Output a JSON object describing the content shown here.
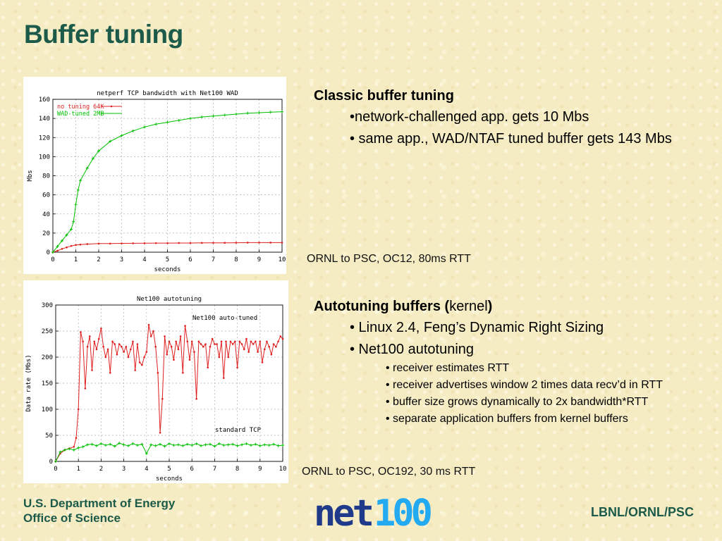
{
  "slide": {
    "title": "Buffer tuning",
    "colors": {
      "title": "#1c5a4a",
      "background": "#f6ecc4",
      "series_red": "#e02020",
      "series_green": "#00c000"
    }
  },
  "section1": {
    "title": "Classic buffer tuning",
    "bullets": [
      "•network-challenged app. gets 10 Mbs",
      "• same app., WAD/NTAF tuned buffer gets 143 Mbs"
    ],
    "caption": "ORNL to PSC,  OC12, 80ms RTT"
  },
  "section2": {
    "title_bold": "Autotuning buffers (",
    "title_normal": "kernel",
    "title_close": ")",
    "bullets": [
      "• Linux 2.4, Feng’s Dynamic Right Sizing",
      "•  Net100 autotuning"
    ],
    "sub_bullets": [
      "• receiver estimates RTT",
      "• receiver advertises window 2 times data recv’d in RTT",
      "• buffer size grows dynamically to 2x bandwidth*RTT",
      "• separate application buffers from kernel buffers"
    ],
    "caption": "ORNL to PSC, OC192, 30 ms RTT"
  },
  "footer": {
    "dept_line1": "U.S. Department of Energy",
    "dept_line2": "Office of Science",
    "labs": "LBNL/ORNL/PSC",
    "logo_text": "net100",
    "logo_icon": "net100-logo"
  },
  "chart_data": [
    {
      "type": "line",
      "title": "netperf TCP bandwidth with Net100 WAD",
      "xlabel": "seconds",
      "ylabel": "Mbs",
      "xlim": [
        0,
        10
      ],
      "ylim": [
        0,
        160
      ],
      "xticks": [
        "0",
        "1",
        "2",
        "3",
        "4",
        "5",
        "6",
        "7",
        "8",
        "9",
        "10"
      ],
      "yticks": [
        "0",
        "20",
        "40",
        "60",
        "80",
        "100",
        "120",
        "140",
        "160"
      ],
      "grid": true,
      "legend_position": "top-left",
      "series": [
        {
          "name": "no tuning 64K",
          "color": "#e02020",
          "x": [
            0,
            0.2,
            0.4,
            0.6,
            0.8,
            1.0,
            1.2,
            1.5,
            2,
            2.5,
            3,
            3.5,
            4,
            4.5,
            5,
            5.5,
            6,
            6.5,
            7,
            7.5,
            8,
            8.5,
            9,
            9.5,
            10
          ],
          "y": [
            0,
            1.5,
            3.5,
            5,
            6.5,
            7.5,
            8,
            8.5,
            9,
            9,
            9.2,
            9.3,
            9.4,
            9.5,
            9.5,
            9.6,
            9.6,
            9.7,
            9.8,
            9.8,
            9.9,
            10,
            10,
            10,
            10
          ]
        },
        {
          "name": "WAD-tuned 2MB",
          "color": "#00c000",
          "x": [
            0,
            0.2,
            0.4,
            0.6,
            0.8,
            0.9,
            1.0,
            1.1,
            1.2,
            1.5,
            1.75,
            2,
            2.5,
            3,
            3.5,
            4,
            4.5,
            5,
            5.5,
            6,
            6.5,
            7,
            7.5,
            8,
            8.5,
            9,
            9.5,
            10
          ],
          "y": [
            0,
            6,
            12,
            18,
            24,
            32,
            50,
            65,
            75,
            88,
            98,
            106,
            116,
            122,
            127,
            131,
            134,
            136,
            138,
            140,
            141.5,
            142.5,
            143.5,
            144.5,
            145.5,
            146,
            146.5,
            147
          ]
        }
      ]
    },
    {
      "type": "line",
      "title": "Net100 autotuning",
      "xlabel": "seconds",
      "ylabel": "Data rate (Mbs)",
      "xlim": [
        0,
        10
      ],
      "ylim": [
        0,
        300
      ],
      "xticks": [
        "0",
        "1",
        "2",
        "3",
        "4",
        "5",
        "6",
        "7",
        "8",
        "9",
        "10"
      ],
      "yticks": [
        "0",
        "50",
        "100",
        "150",
        "200",
        "250",
        "300"
      ],
      "grid": true,
      "annotations": [
        "Net100 auto-tuned",
        "standard TCP"
      ],
      "series": [
        {
          "name": "Net100 auto-tuned",
          "color": "#e02020",
          "x": [
            0,
            0.2,
            0.4,
            0.6,
            0.8,
            0.9,
            1.0,
            1.1,
            1.2,
            1.3,
            1.4,
            1.5,
            1.6,
            1.7,
            1.8,
            1.9,
            2.0,
            2.1,
            2.2,
            2.3,
            2.4,
            2.5,
            2.6,
            2.7,
            2.8,
            2.9,
            3.0,
            3.1,
            3.2,
            3.3,
            3.4,
            3.5,
            3.6,
            3.7,
            3.8,
            3.9,
            4.0,
            4.1,
            4.2,
            4.3,
            4.4,
            4.5,
            4.6,
            4.7,
            4.8,
            4.9,
            5.0,
            5.1,
            5.2,
            5.3,
            5.4,
            5.5,
            5.6,
            5.7,
            5.8,
            5.9,
            6.0,
            6.1,
            6.2,
            6.3,
            6.4,
            6.5,
            6.6,
            6.7,
            6.8,
            6.9,
            7.0,
            7.1,
            7.2,
            7.3,
            7.4,
            7.5,
            7.6,
            7.7,
            7.8,
            7.9,
            8.0,
            8.1,
            8.2,
            8.3,
            8.4,
            8.5,
            8.6,
            8.7,
            8.8,
            8.9,
            9.0,
            9.1,
            9.2,
            9.3,
            9.4,
            9.5,
            9.6,
            9.7,
            9.8,
            9.9,
            10.0
          ],
          "y": [
            0,
            15,
            22,
            25,
            28,
            45,
            100,
            248,
            230,
            140,
            220,
            240,
            175,
            230,
            215,
            235,
            255,
            220,
            200,
            215,
            170,
            230,
            225,
            205,
            225,
            220,
            210,
            220,
            200,
            215,
            230,
            175,
            225,
            190,
            185,
            200,
            210,
            262,
            240,
            250,
            220,
            170,
            55,
            120,
            240,
            205,
            230,
            220,
            195,
            230,
            215,
            240,
            170,
            260,
            230,
            195,
            230,
            210,
            120,
            230,
            225,
            220,
            225,
            180,
            220,
            235,
            225,
            225,
            200,
            230,
            160,
            230,
            200,
            230,
            225,
            230,
            180,
            230,
            225,
            215,
            235,
            210,
            230,
            225,
            230,
            210,
            230,
            190,
            215,
            230,
            220,
            205,
            225,
            220,
            230,
            240,
            235
          ]
        },
        {
          "name": "standard TCP",
          "color": "#00c000",
          "x": [
            0,
            0.2,
            0.4,
            0.6,
            0.8,
            1.0,
            1.2,
            1.4,
            1.6,
            1.8,
            2.0,
            2.2,
            2.4,
            2.6,
            2.8,
            3.0,
            3.2,
            3.4,
            3.6,
            3.8,
            4.0,
            4.2,
            4.4,
            4.6,
            4.8,
            5.0,
            5.2,
            5.4,
            5.6,
            5.8,
            6.0,
            6.2,
            6.4,
            6.6,
            6.8,
            7.0,
            7.2,
            7.4,
            7.6,
            7.8,
            8.0,
            8.2,
            8.4,
            8.6,
            8.8,
            9.0,
            9.2,
            9.4,
            9.6,
            9.8,
            10.0
          ],
          "y": [
            0,
            18,
            22,
            24,
            22,
            26,
            28,
            32,
            33,
            30,
            34,
            31,
            33,
            29,
            35,
            32,
            30,
            34,
            31,
            33,
            15,
            32,
            30,
            33,
            29,
            34,
            31,
            32,
            30,
            33,
            31,
            34,
            30,
            32,
            33,
            29,
            34,
            31,
            32,
            33,
            30,
            32,
            34,
            31,
            33,
            30,
            32,
            31,
            33,
            30,
            31
          ]
        }
      ]
    }
  ]
}
